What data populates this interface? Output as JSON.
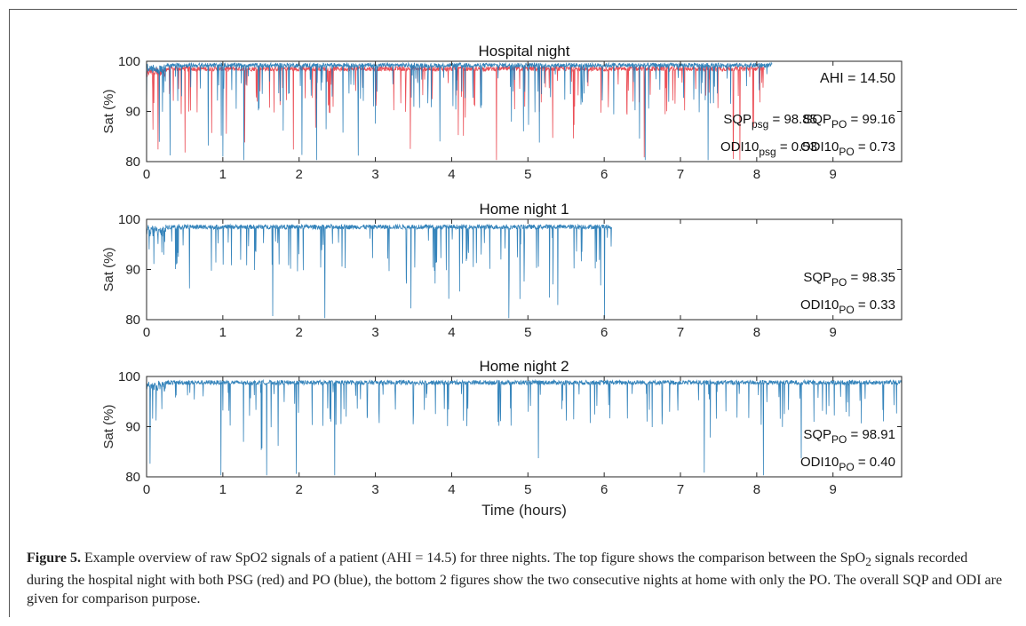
{
  "chart_data": [
    {
      "type": "line",
      "title": "Hospital night",
      "xlabel": "",
      "ylabel": "Sat (%)",
      "xlim": [
        0,
        9.9
      ],
      "ylim": [
        80,
        100
      ],
      "x_ticks": [
        0,
        1,
        2,
        3,
        4,
        5,
        6,
        7,
        8,
        9
      ],
      "y_ticks": [
        80,
        90,
        100
      ],
      "series": [
        {
          "color": "#e8303a",
          "x_end_hours": 8.1,
          "baseline": 98.5
        },
        {
          "color": "#1f77b4",
          "x_end_hours": 8.2,
          "baseline": 99.2
        }
      ],
      "annotations": {
        "ahi": "AHI = 14.50",
        "sqp_psg_base": "SQP",
        "sqp_psg_sub": "psg",
        "sqp_psg_val": " = 98.85",
        "odi_psg_base": "ODI10",
        "odi_psg_sub": "psg",
        "odi_psg_val": " = 0.53",
        "sqp_po_base": "SQP",
        "sqp_po_sub": "PO",
        "sqp_po_val": " = 99.16",
        "odi_po_base": "ODI10",
        "odi_po_sub": "PO",
        "odi_po_val": " = 0.73"
      }
    },
    {
      "type": "line",
      "title": "Home night 1",
      "xlabel": "",
      "ylabel": "Sat (%)",
      "xlim": [
        0,
        9.9
      ],
      "ylim": [
        80,
        100
      ],
      "x_ticks": [
        0,
        1,
        2,
        3,
        4,
        5,
        6,
        7,
        8,
        9
      ],
      "y_ticks": [
        80,
        90,
        100
      ],
      "series": [
        {
          "color": "#1f77b4",
          "x_end_hours": 6.1,
          "baseline": 98.5
        }
      ],
      "annotations": {
        "sqp_po_base": "SQP",
        "sqp_po_sub": "PO",
        "sqp_po_val": " = 98.35",
        "odi_po_base": "ODI10",
        "odi_po_sub": "PO",
        "odi_po_val": " = 0.33"
      }
    },
    {
      "type": "line",
      "title": "Home night 2",
      "xlabel": "Time (hours)",
      "ylabel": "Sat (%)",
      "xlim": [
        0,
        9.9
      ],
      "ylim": [
        80,
        100
      ],
      "x_ticks": [
        0,
        1,
        2,
        3,
        4,
        5,
        6,
        7,
        8,
        9
      ],
      "y_ticks": [
        80,
        90,
        100
      ],
      "series": [
        {
          "color": "#1f77b4",
          "x_end_hours": 9.9,
          "baseline": 98.8
        }
      ],
      "annotations": {
        "sqp_po_base": "SQP",
        "sqp_po_sub": "PO",
        "sqp_po_val": " = 98.91",
        "odi_po_base": "ODI10",
        "odi_po_sub": "PO",
        "odi_po_val": " = 0.40"
      }
    }
  ],
  "caption": {
    "label": "Figure 5.",
    "text_1": " Example overview of raw SpO2 signals of a patient (AHI = 14.5) for three nights. The top figure shows the comparison between the SpO",
    "sub": "2",
    "text_2": " signals recorded during the hospital night with both PSG (red) and PO (blue), the bottom 2 figures show the two consecutive nights at home with only the PO. The overall SQP and ODI are given for comparison purpose."
  }
}
